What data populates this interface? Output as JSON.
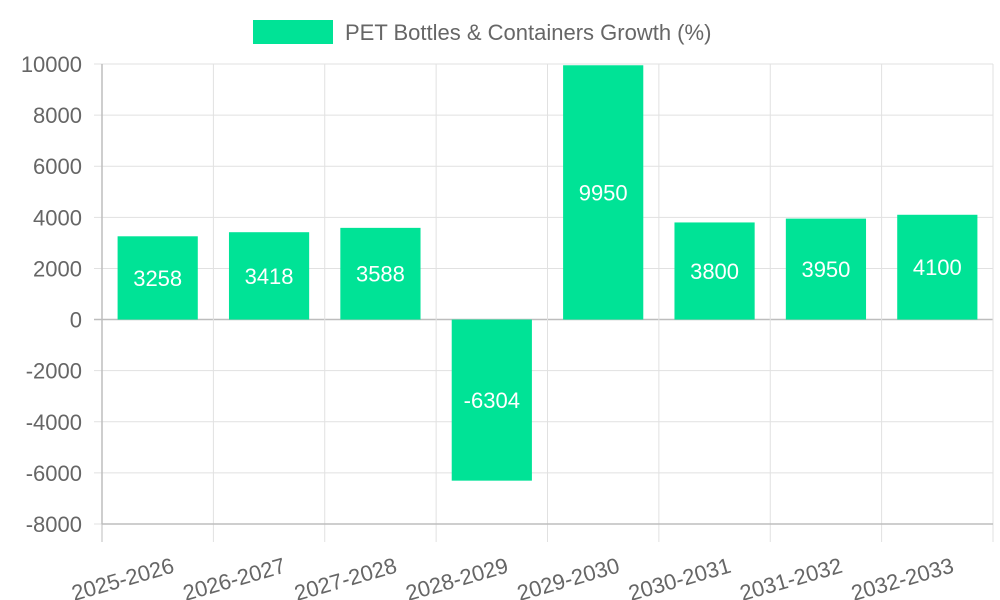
{
  "chart_data": {
    "type": "bar",
    "title": "",
    "xlabel": "",
    "ylabel": "",
    "categories": [
      "2025-2026",
      "2026-2027",
      "2027-2028",
      "2028-2029",
      "2029-2030",
      "2030-2031",
      "2031-2032",
      "2032-2033"
    ],
    "series": [
      {
        "name": "PET Bottles & Containers Growth (%)",
        "values": [
          3258,
          3418,
          3588,
          -6304,
          9950,
          3800,
          3950,
          4100
        ],
        "color": "#00e396"
      }
    ],
    "ylim": [
      -8000,
      10000
    ],
    "yticks": [
      10000,
      8000,
      6000,
      4000,
      2000,
      0,
      -2000,
      -4000,
      -6000,
      -8000
    ],
    "grid": true,
    "legend_position": "top-center",
    "data_labels": true,
    "data_label_color": "#ffffff"
  }
}
